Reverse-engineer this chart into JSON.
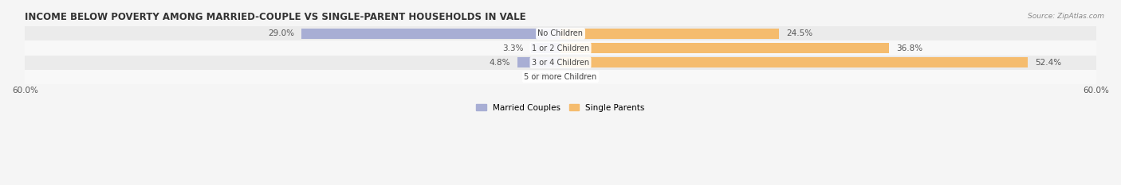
{
  "title": "INCOME BELOW POVERTY AMONG MARRIED-COUPLE VS SINGLE-PARENT HOUSEHOLDS IN VALE",
  "source": "Source: ZipAtlas.com",
  "categories": [
    "No Children",
    "1 or 2 Children",
    "3 or 4 Children",
    "5 or more Children"
  ],
  "married_values": [
    29.0,
    3.3,
    4.8,
    0.0
  ],
  "single_values": [
    24.5,
    36.8,
    52.4,
    0.0
  ],
  "married_color": "#a8aed4",
  "single_color": "#f5bc6e",
  "axis_limit": 60.0,
  "bar_height": 0.72,
  "row_colors": [
    "#ebebeb",
    "#f8f8f8"
  ],
  "fig_bg": "#f5f5f5",
  "legend_labels": [
    "Married Couples",
    "Single Parents"
  ],
  "title_fontsize": 8.5,
  "label_fontsize": 7.5,
  "tick_fontsize": 7.5,
  "category_fontsize": 7.0
}
